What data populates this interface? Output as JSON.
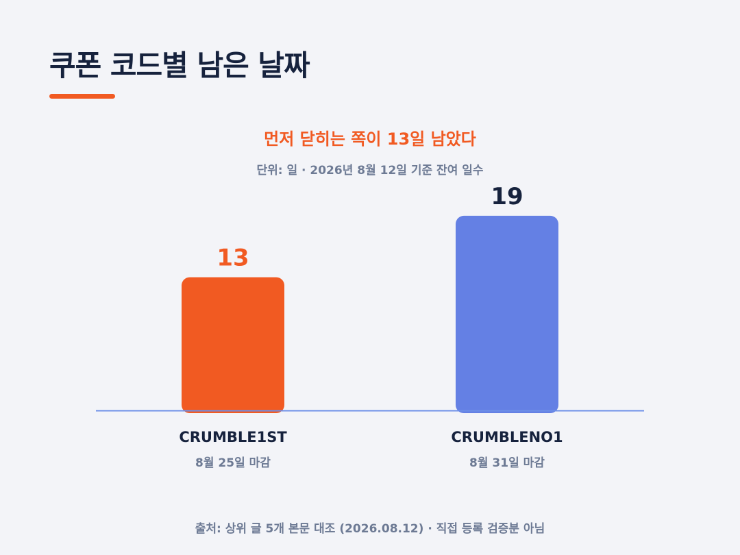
{
  "title": "쿠폰 코드별 남은 날짜",
  "colors": {
    "accent": "#f15a22",
    "secondary": "#6480e4",
    "baseline": "#6d8fe8",
    "title": "#16223d",
    "muted": "#6d7a94"
  },
  "chart_data": {
    "type": "bar",
    "subtitle": "먼저 닫히는 쪽이 13일 남았다",
    "unit_note": "단위: 일 · 2026년 8월 12일 기준 잔여 일수",
    "categories": [
      "CRUMBLE1ST",
      "CRUMBLENO1"
    ],
    "sublabels": [
      "8월 25일 마감",
      "8월 31일 마감"
    ],
    "values": [
      13,
      19
    ],
    "data_labels": [
      "13",
      "19"
    ],
    "bar_colors": [
      "#f15a22",
      "#6480e4"
    ],
    "data_label_colors": [
      "#f15a22",
      "#16223d"
    ],
    "ylim": [
      0,
      20.8
    ],
    "grid": false,
    "legend": "none"
  },
  "source": "출처: 상위 글 5개 본문 대조 (2026.08.12) · 직접 등록 검증분 아님"
}
